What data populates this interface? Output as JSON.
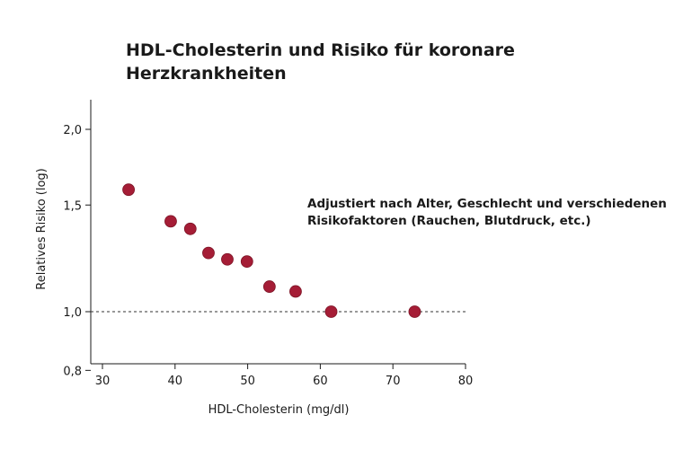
{
  "chart_data": {
    "type": "scatter",
    "title": "HDL-Cholesterin und Risiko für koronare Herzkrankheiten",
    "xlabel": "HDL-Cholesterin (mg/dl)",
    "ylabel": "Relatives Risiko (log)",
    "xlim": [
      28,
      80
    ],
    "ylim": [
      0.8,
      2.2
    ],
    "y_scale": "log",
    "x_ticks": [
      30,
      40,
      50,
      60,
      70,
      80
    ],
    "y_ticks": [
      0.8,
      1.0,
      1.5,
      2.0
    ],
    "x_tick_labels": [
      "30",
      "40",
      "50",
      "60",
      "70",
      "80"
    ],
    "y_tick_labels": [
      "0,8",
      "1,0",
      "1,5",
      "2,0"
    ],
    "reference_line": {
      "y": 1.0,
      "style": "dashed"
    },
    "annotation": "Adjustiert nach Alter, Geschlecht und verschiedenen Risikofaktoren (Rauchen, Blutdruck, etc.)",
    "marker_color": "#a51d36",
    "points": [
      {
        "x": 33.6,
        "y": 1.59
      },
      {
        "x": 39.4,
        "y": 1.41
      },
      {
        "x": 42.1,
        "y": 1.37
      },
      {
        "x": 44.6,
        "y": 1.25
      },
      {
        "x": 47.2,
        "y": 1.22
      },
      {
        "x": 49.9,
        "y": 1.21
      },
      {
        "x": 53.0,
        "y": 1.1
      },
      {
        "x": 56.6,
        "y": 1.08
      },
      {
        "x": 61.5,
        "y": 1.0
      },
      {
        "x": 73.0,
        "y": 1.0
      }
    ]
  }
}
